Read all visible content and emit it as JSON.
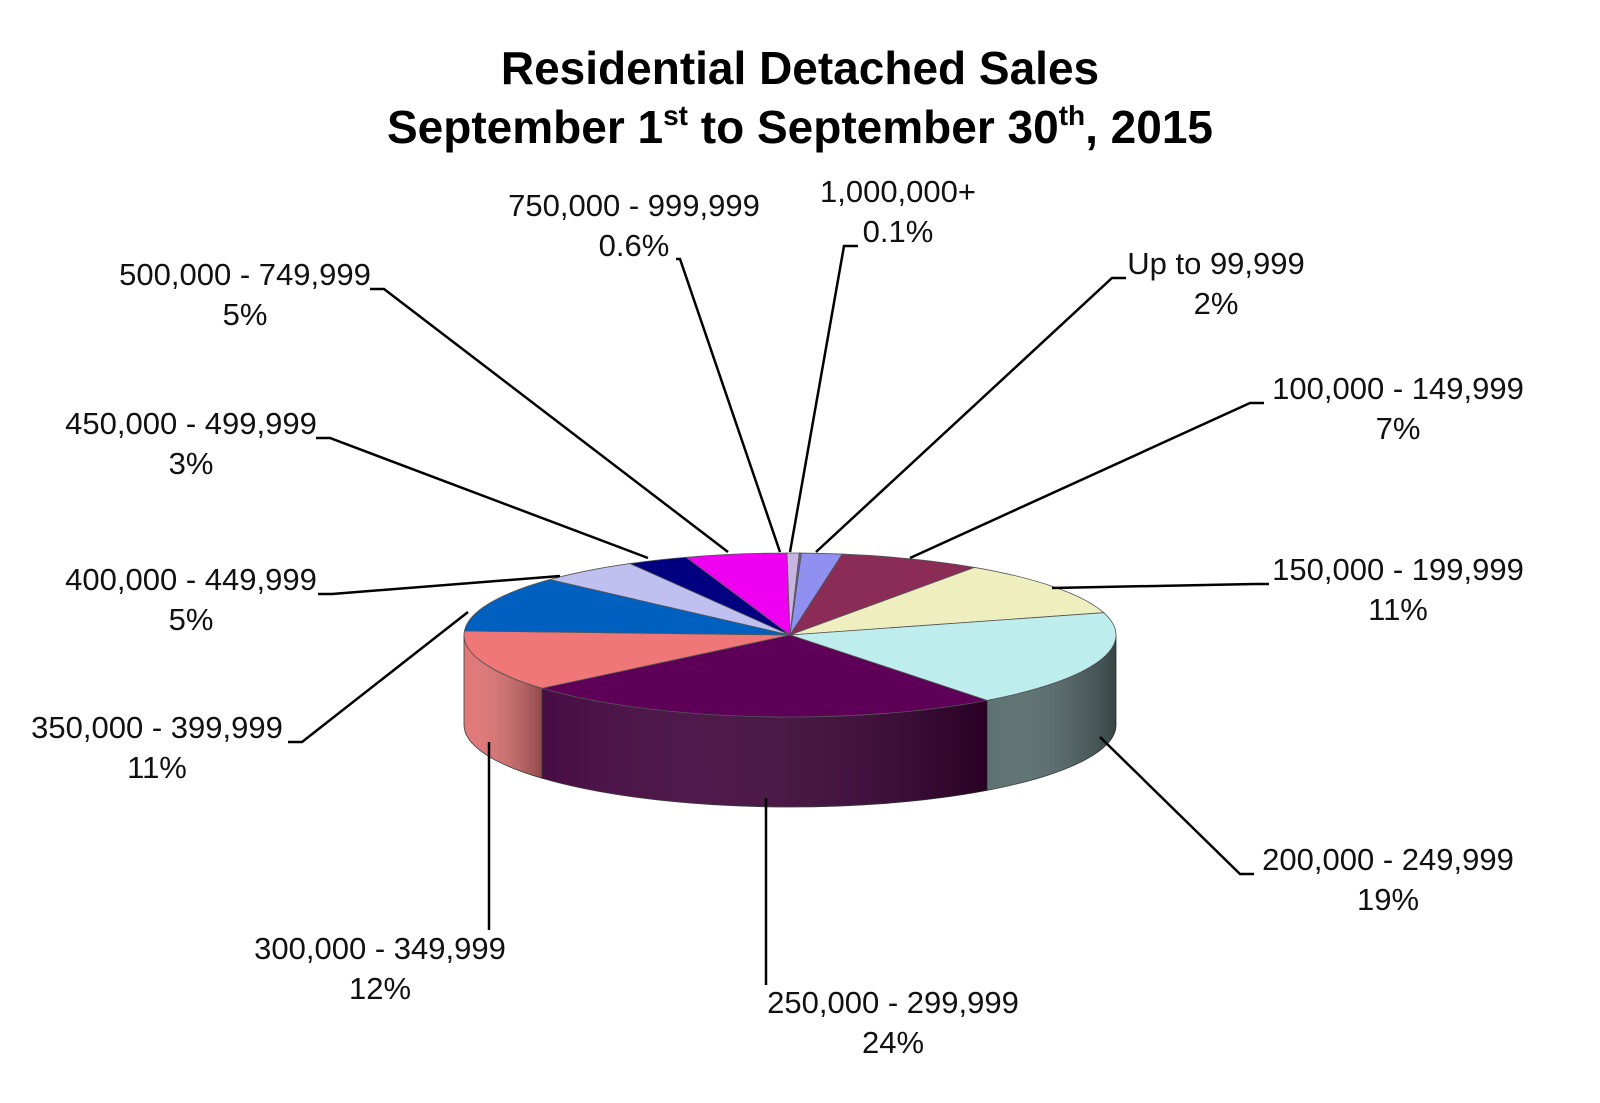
{
  "chart_data": {
    "type": "pie",
    "title": {
      "line1": "Residential Detached Sales",
      "line2_parts": [
        "September 1",
        "st",
        " to September 30",
        "th",
        ", 2015"
      ]
    },
    "slices": [
      {
        "label": "Up to 99,999",
        "percent_label": "2%",
        "value": 2,
        "color": "#9090F0",
        "side_color": "#5A5AA8"
      },
      {
        "label": "100,000 - 149,999",
        "percent_label": "7%",
        "value": 7,
        "color": "#8B2C57",
        "side_color": "#5A1A38"
      },
      {
        "label": "150,000 - 199,999",
        "percent_label": "11%",
        "value": 11,
        "color": "#EEEEBF",
        "side_color": "#A8A880"
      },
      {
        "label": "200,000 - 249,999",
        "percent_label": "19%",
        "value": 19,
        "color": "#BDEDED",
        "side_color": "#546A6A"
      },
      {
        "label": "250,000 - 299,999",
        "percent_label": "24%",
        "value": 24,
        "color": "#5E0057",
        "side_color": "#3E003A"
      },
      {
        "label": "300,000 - 349,999",
        "percent_label": "12%",
        "value": 12,
        "color": "#EF7777",
        "side_color": "#E07070"
      },
      {
        "label": "350,000 - 399,999",
        "percent_label": "11%",
        "value": 11,
        "color": "#0060C0",
        "side_color": "#003F80"
      },
      {
        "label": "400,000 - 449,999",
        "percent_label": "5%",
        "value": 5,
        "color": "#C0C0F0",
        "side_color": "#8080B0"
      },
      {
        "label": "450,000 - 499,999",
        "percent_label": "3%",
        "value": 3,
        "color": "#000080",
        "side_color": "#000050"
      },
      {
        "label": "500,000 - 749,999",
        "percent_label": "5%",
        "value": 5,
        "color": "#F000F0",
        "side_color": "#A000A0"
      },
      {
        "label": "750,000 - 999,999",
        "percent_label": "0.6%",
        "value": 0.6,
        "color": "#C8B4E0",
        "side_color": "#9080A8"
      },
      {
        "label": "1,000,000+",
        "percent_label": "0.1%",
        "value": 0.1,
        "color": "#6B5FA8",
        "side_color": "#453C70"
      }
    ],
    "start_angle_deg": -88,
    "legend": "none"
  }
}
